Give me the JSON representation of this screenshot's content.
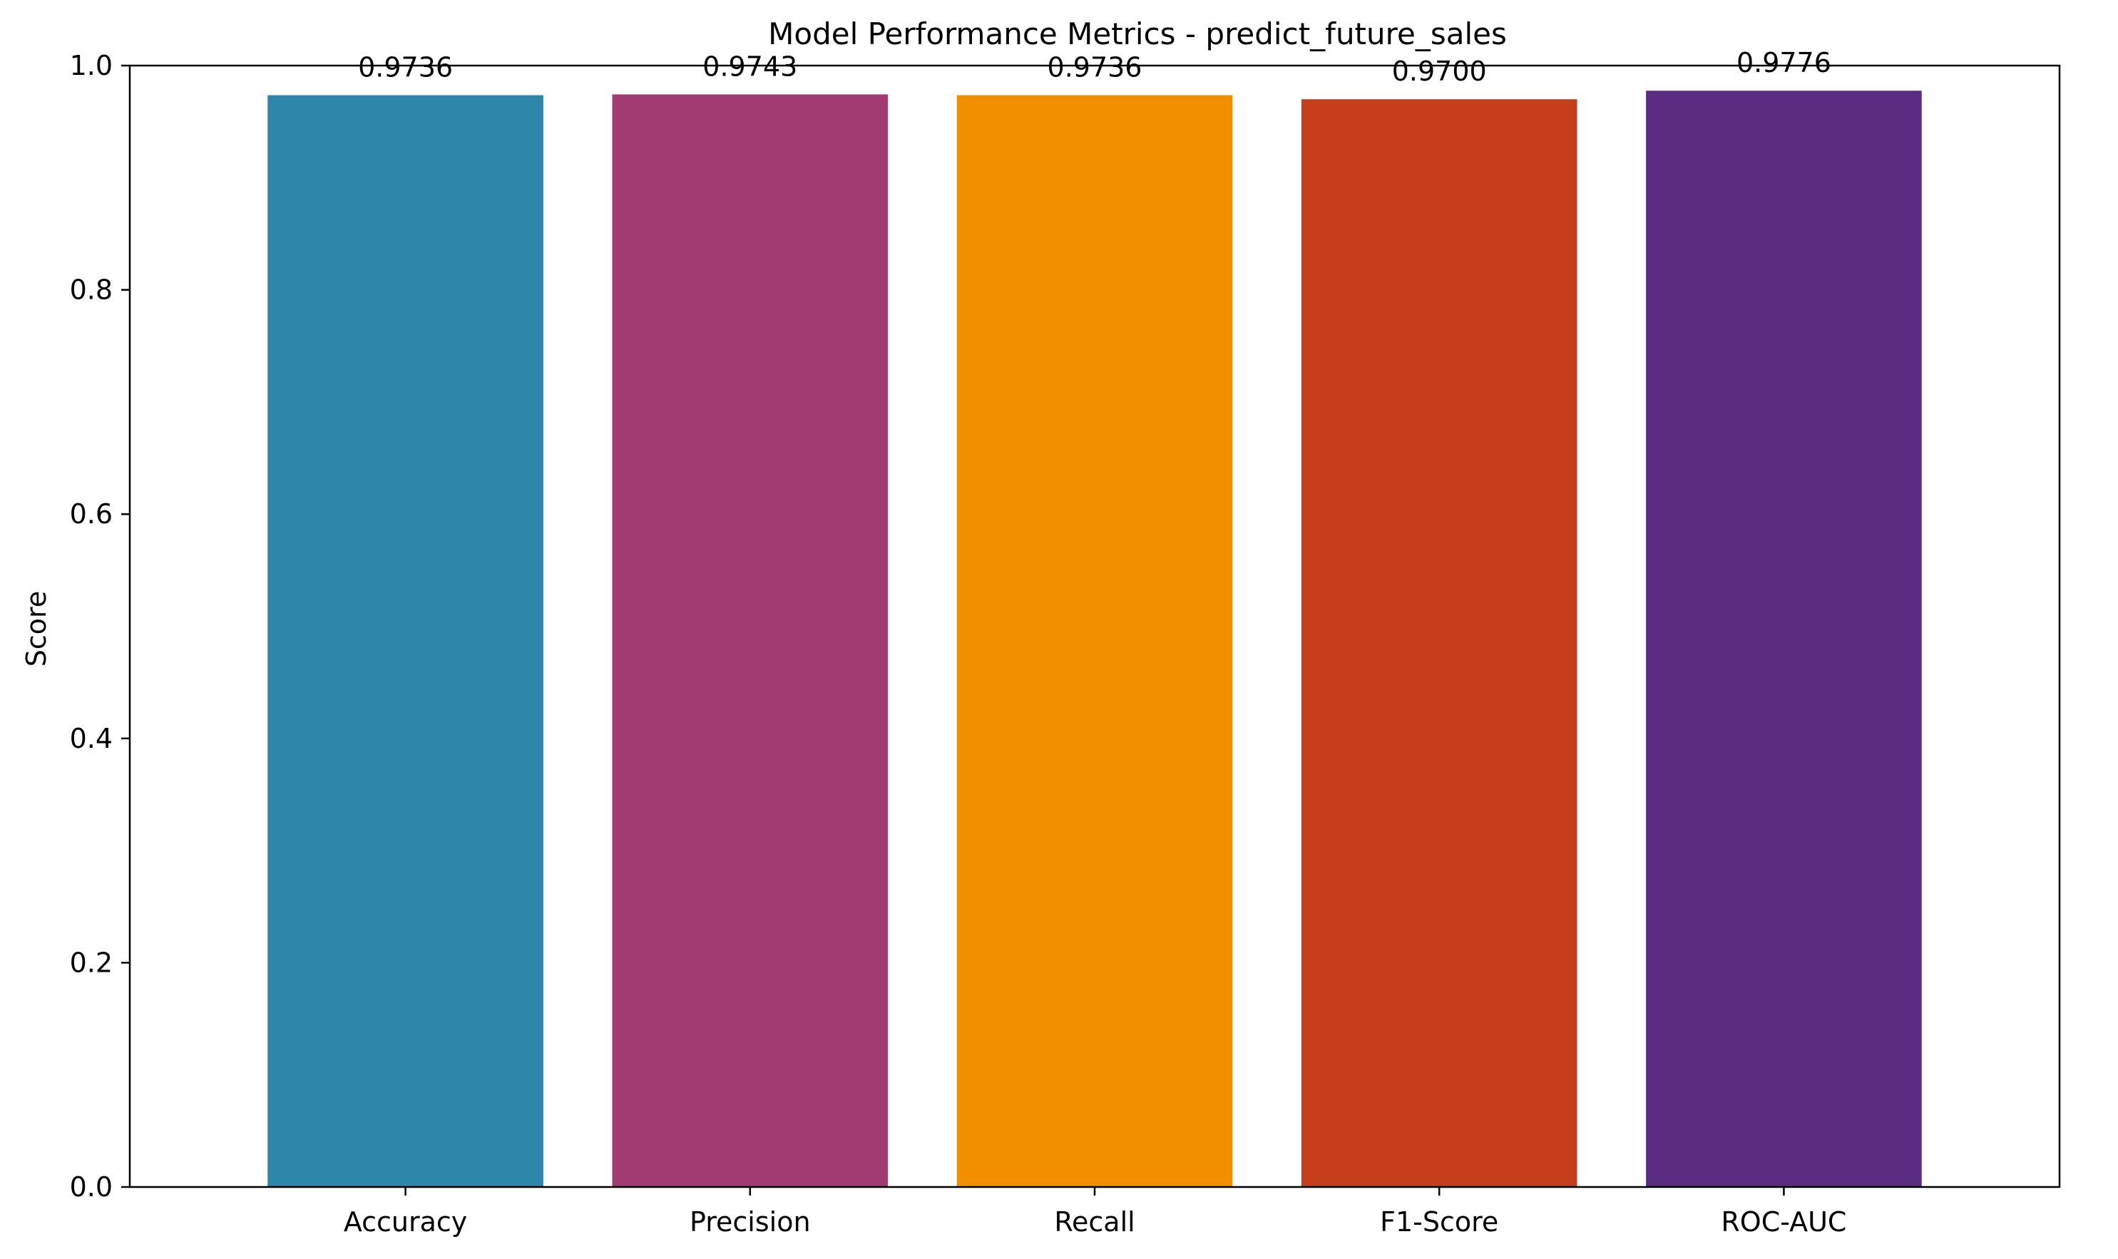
{
  "chart_data": {
    "type": "bar",
    "title": "Model Performance Metrics - predict_future_sales",
    "xlabel": "",
    "ylabel": "Score",
    "categories": [
      "Accuracy",
      "Precision",
      "Recall",
      "F1-Score",
      "ROC-AUC"
    ],
    "values": [
      0.9736,
      0.9743,
      0.9736,
      0.97,
      0.9776
    ],
    "value_labels": [
      "0.9736",
      "0.9743",
      "0.9736",
      "0.9700",
      "0.9776"
    ],
    "colors": [
      "#2e86ab",
      "#a23b72",
      "#f18f01",
      "#c73e1d",
      "#5a2d82"
    ],
    "ylim": [
      0,
      1.0
    ],
    "yticks": [
      0.0,
      0.2,
      0.4,
      0.6,
      0.8,
      1.0
    ],
    "ytick_labels": [
      "0.0",
      "0.2",
      "0.4",
      "0.6",
      "0.8",
      "1.0"
    ],
    "grid": false,
    "legend": false
  }
}
